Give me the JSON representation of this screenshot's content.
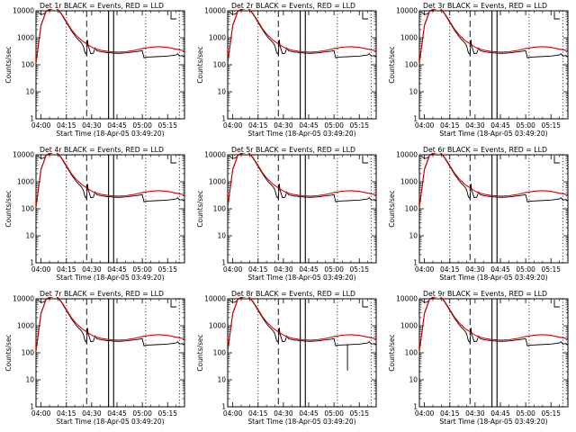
{
  "page": {
    "header_label": "Start Time (18-Apr-05 03:49:20)"
  },
  "chart_data": {
    "type": "line",
    "layout": "3x3 grid of detector rate plots",
    "ylabel": "Counts/sec",
    "xlabel": "Start Time (18-Apr-05 03:49:20)",
    "yscale": "log",
    "ylim": [
      1,
      10000
    ],
    "yticks": [
      1,
      10,
      100,
      1000,
      10000
    ],
    "ytick_labels": [
      "1",
      "10",
      "100",
      "1000",
      "10000"
    ],
    "xlim_minutes": [
      -3,
      85
    ],
    "xticks_minutes": [
      0,
      15,
      30,
      45,
      60,
      75
    ],
    "xtick_labels": [
      "04:00",
      "04:15",
      "04:30",
      "04:45",
      "05:00",
      "05:15"
    ],
    "vertical_markers": [
      {
        "t": 15,
        "style": "dotted"
      },
      {
        "t": 27,
        "style": "dashed"
      },
      {
        "t": 40,
        "style": "solid"
      },
      {
        "t": 43,
        "style": "solid"
      },
      {
        "t": 62,
        "style": "dotted"
      },
      {
        "t": 82,
        "style": "dotted"
      }
    ],
    "series_styles": [
      {
        "name": "Events",
        "color": "#000000"
      },
      {
        "name": "LLD",
        "color": "#e00000"
      }
    ],
    "lld_series": {
      "t": [
        -3,
        0,
        3,
        6,
        9,
        12,
        15,
        18,
        21,
        24,
        27,
        30,
        33,
        36,
        40,
        43,
        46,
        50,
        55,
        60,
        65,
        70,
        75,
        80,
        85
      ],
      "y": [
        120,
        3000,
        10000,
        12000,
        13000,
        8000,
        4000,
        2000,
        1200,
        800,
        600,
        450,
        380,
        340,
        310,
        300,
        295,
        305,
        340,
        400,
        450,
        470,
        440,
        380,
        330
      ]
    },
    "event_series_base": {
      "t": [
        -3,
        0,
        3,
        6,
        9,
        12,
        15,
        18,
        21,
        24,
        25,
        26,
        27,
        27.5,
        28,
        29.5,
        31,
        32,
        33,
        36,
        40,
        43,
        46,
        50,
        55,
        60,
        61,
        62,
        68,
        75,
        80,
        81,
        82,
        84,
        85
      ],
      "y": [
        110,
        2800,
        9500,
        11500,
        12500,
        7600,
        3700,
        1800,
        1000,
        640,
        500,
        280,
        240,
        850,
        500,
        260,
        270,
        420,
        330,
        300,
        280,
        270,
        265,
        275,
        300,
        330,
        180,
        190,
        200,
        210,
        230,
        260,
        210,
        220,
        200
      ]
    },
    "panels": [
      {
        "detector": "1r",
        "title": "Det 1r BLACK = Events, RED = LLD",
        "spikes": []
      },
      {
        "detector": "2r",
        "title": "Det 2r BLACK = Events, RED = LLD",
        "spikes": []
      },
      {
        "detector": "3r",
        "title": "Det 3r BLACK = Events, RED = LLD",
        "spikes": []
      },
      {
        "detector": "4r",
        "title": "Det 4r BLACK = Events, RED = LLD",
        "spikes": []
      },
      {
        "detector": "5r",
        "title": "Det 5r BLACK = Events, RED = LLD",
        "spikes": []
      },
      {
        "detector": "6r",
        "title": "Det 6r BLACK = Events, RED = LLD",
        "spikes": []
      },
      {
        "detector": "7r",
        "title": "Det 7r BLACK = Events, RED = LLD",
        "spikes": []
      },
      {
        "detector": "8r",
        "title": "Det 8r BLACK = Events, RED = LLD",
        "spikes": [
          {
            "t": 68,
            "y": 22
          }
        ]
      },
      {
        "detector": "9r",
        "title": "Det 9r BLACK = Events, RED = LLD",
        "spikes": []
      }
    ]
  }
}
